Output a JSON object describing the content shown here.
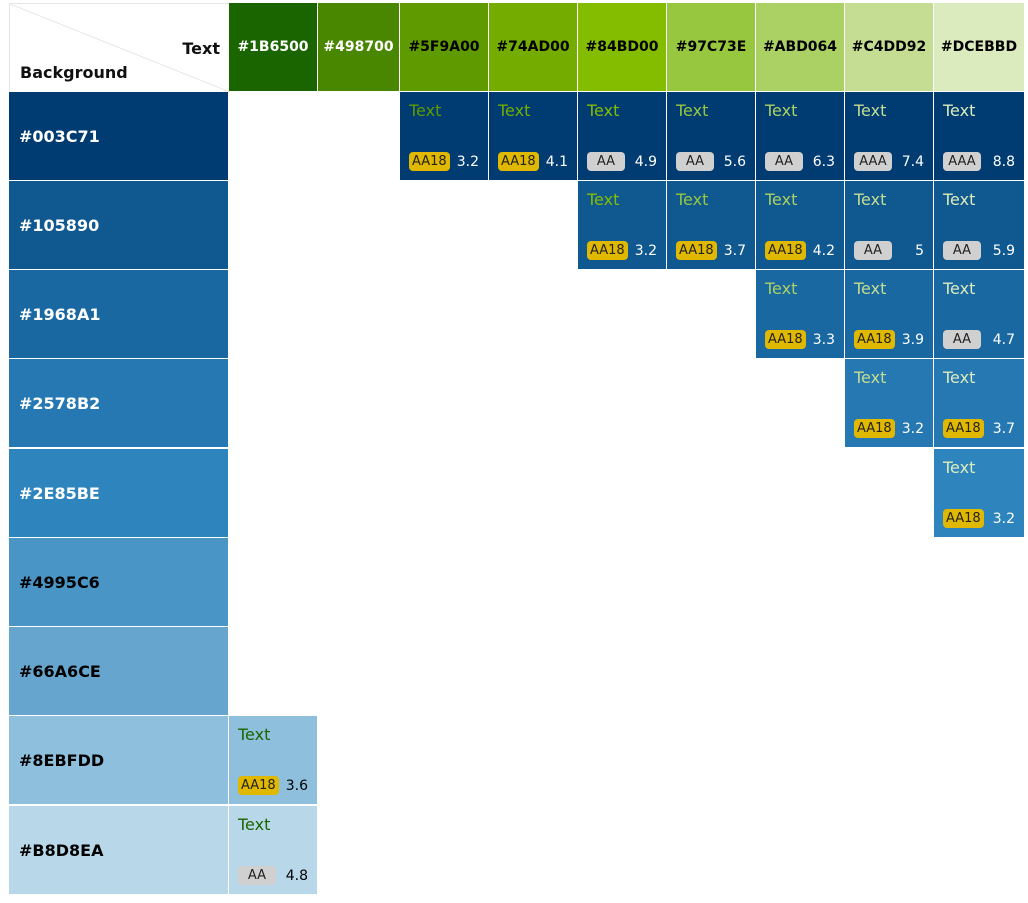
{
  "corner": {
    "text_label": "Text",
    "background_label": "Background"
  },
  "text_colors": [
    "#1B6500",
    "#498700",
    "#5F9A00",
    "#74AD00",
    "#84BD00",
    "#97C73E",
    "#ABD064",
    "#C4DD92",
    "#DCEBBD"
  ],
  "header_text_colors": [
    "#FFFFFF",
    "#FFFFFF",
    "#000000",
    "#000000",
    "#000000",
    "#000000",
    "#000000",
    "#000000",
    "#000000"
  ],
  "background_colors": [
    "#003C71",
    "#105890",
    "#1968A1",
    "#2578B2",
    "#2E85BE",
    "#4995C6",
    "#66A6CE",
    "#8EBFDD",
    "#B8D8EA"
  ],
  "row_label_colors": [
    "#FFFFFF",
    "#FFFFFF",
    "#FFFFFF",
    "#FFFFFF",
    "#FFFFFF",
    "#000000",
    "#000000",
    "#000000",
    "#000000"
  ],
  "ratio_text_colors": [
    "#FFFFFF",
    "#FFFFFF",
    "#FFFFFF",
    "#FFFFFF",
    "#FFFFFF",
    "#000000",
    "#000000",
    "#000000",
    "#000000"
  ],
  "sample_text": "Text",
  "cells": [
    {
      "row": 0,
      "col": 2,
      "level": "AA18",
      "ratio": "3.2"
    },
    {
      "row": 0,
      "col": 3,
      "level": "AA18",
      "ratio": "4.1"
    },
    {
      "row": 0,
      "col": 4,
      "level": "AA",
      "ratio": "4.9"
    },
    {
      "row": 0,
      "col": 5,
      "level": "AA",
      "ratio": "5.6"
    },
    {
      "row": 0,
      "col": 6,
      "level": "AA",
      "ratio": "6.3"
    },
    {
      "row": 0,
      "col": 7,
      "level": "AAA",
      "ratio": "7.4"
    },
    {
      "row": 0,
      "col": 8,
      "level": "AAA",
      "ratio": "8.8"
    },
    {
      "row": 1,
      "col": 4,
      "level": "AA18",
      "ratio": "3.2"
    },
    {
      "row": 1,
      "col": 5,
      "level": "AA18",
      "ratio": "3.7"
    },
    {
      "row": 1,
      "col": 6,
      "level": "AA18",
      "ratio": "4.2"
    },
    {
      "row": 1,
      "col": 7,
      "level": "AA",
      "ratio": "5"
    },
    {
      "row": 1,
      "col": 8,
      "level": "AA",
      "ratio": "5.9"
    },
    {
      "row": 2,
      "col": 6,
      "level": "AA18",
      "ratio": "3.3"
    },
    {
      "row": 2,
      "col": 7,
      "level": "AA18",
      "ratio": "3.9"
    },
    {
      "row": 2,
      "col": 8,
      "level": "AA",
      "ratio": "4.7"
    },
    {
      "row": 3,
      "col": 7,
      "level": "AA18",
      "ratio": "3.2"
    },
    {
      "row": 3,
      "col": 8,
      "level": "AA18",
      "ratio": "3.7"
    },
    {
      "row": 4,
      "col": 8,
      "level": "AA18",
      "ratio": "3.2"
    },
    {
      "row": 7,
      "col": 0,
      "level": "AA18",
      "ratio": "3.6"
    },
    {
      "row": 8,
      "col": 0,
      "level": "AA",
      "ratio": "4.8"
    }
  ]
}
